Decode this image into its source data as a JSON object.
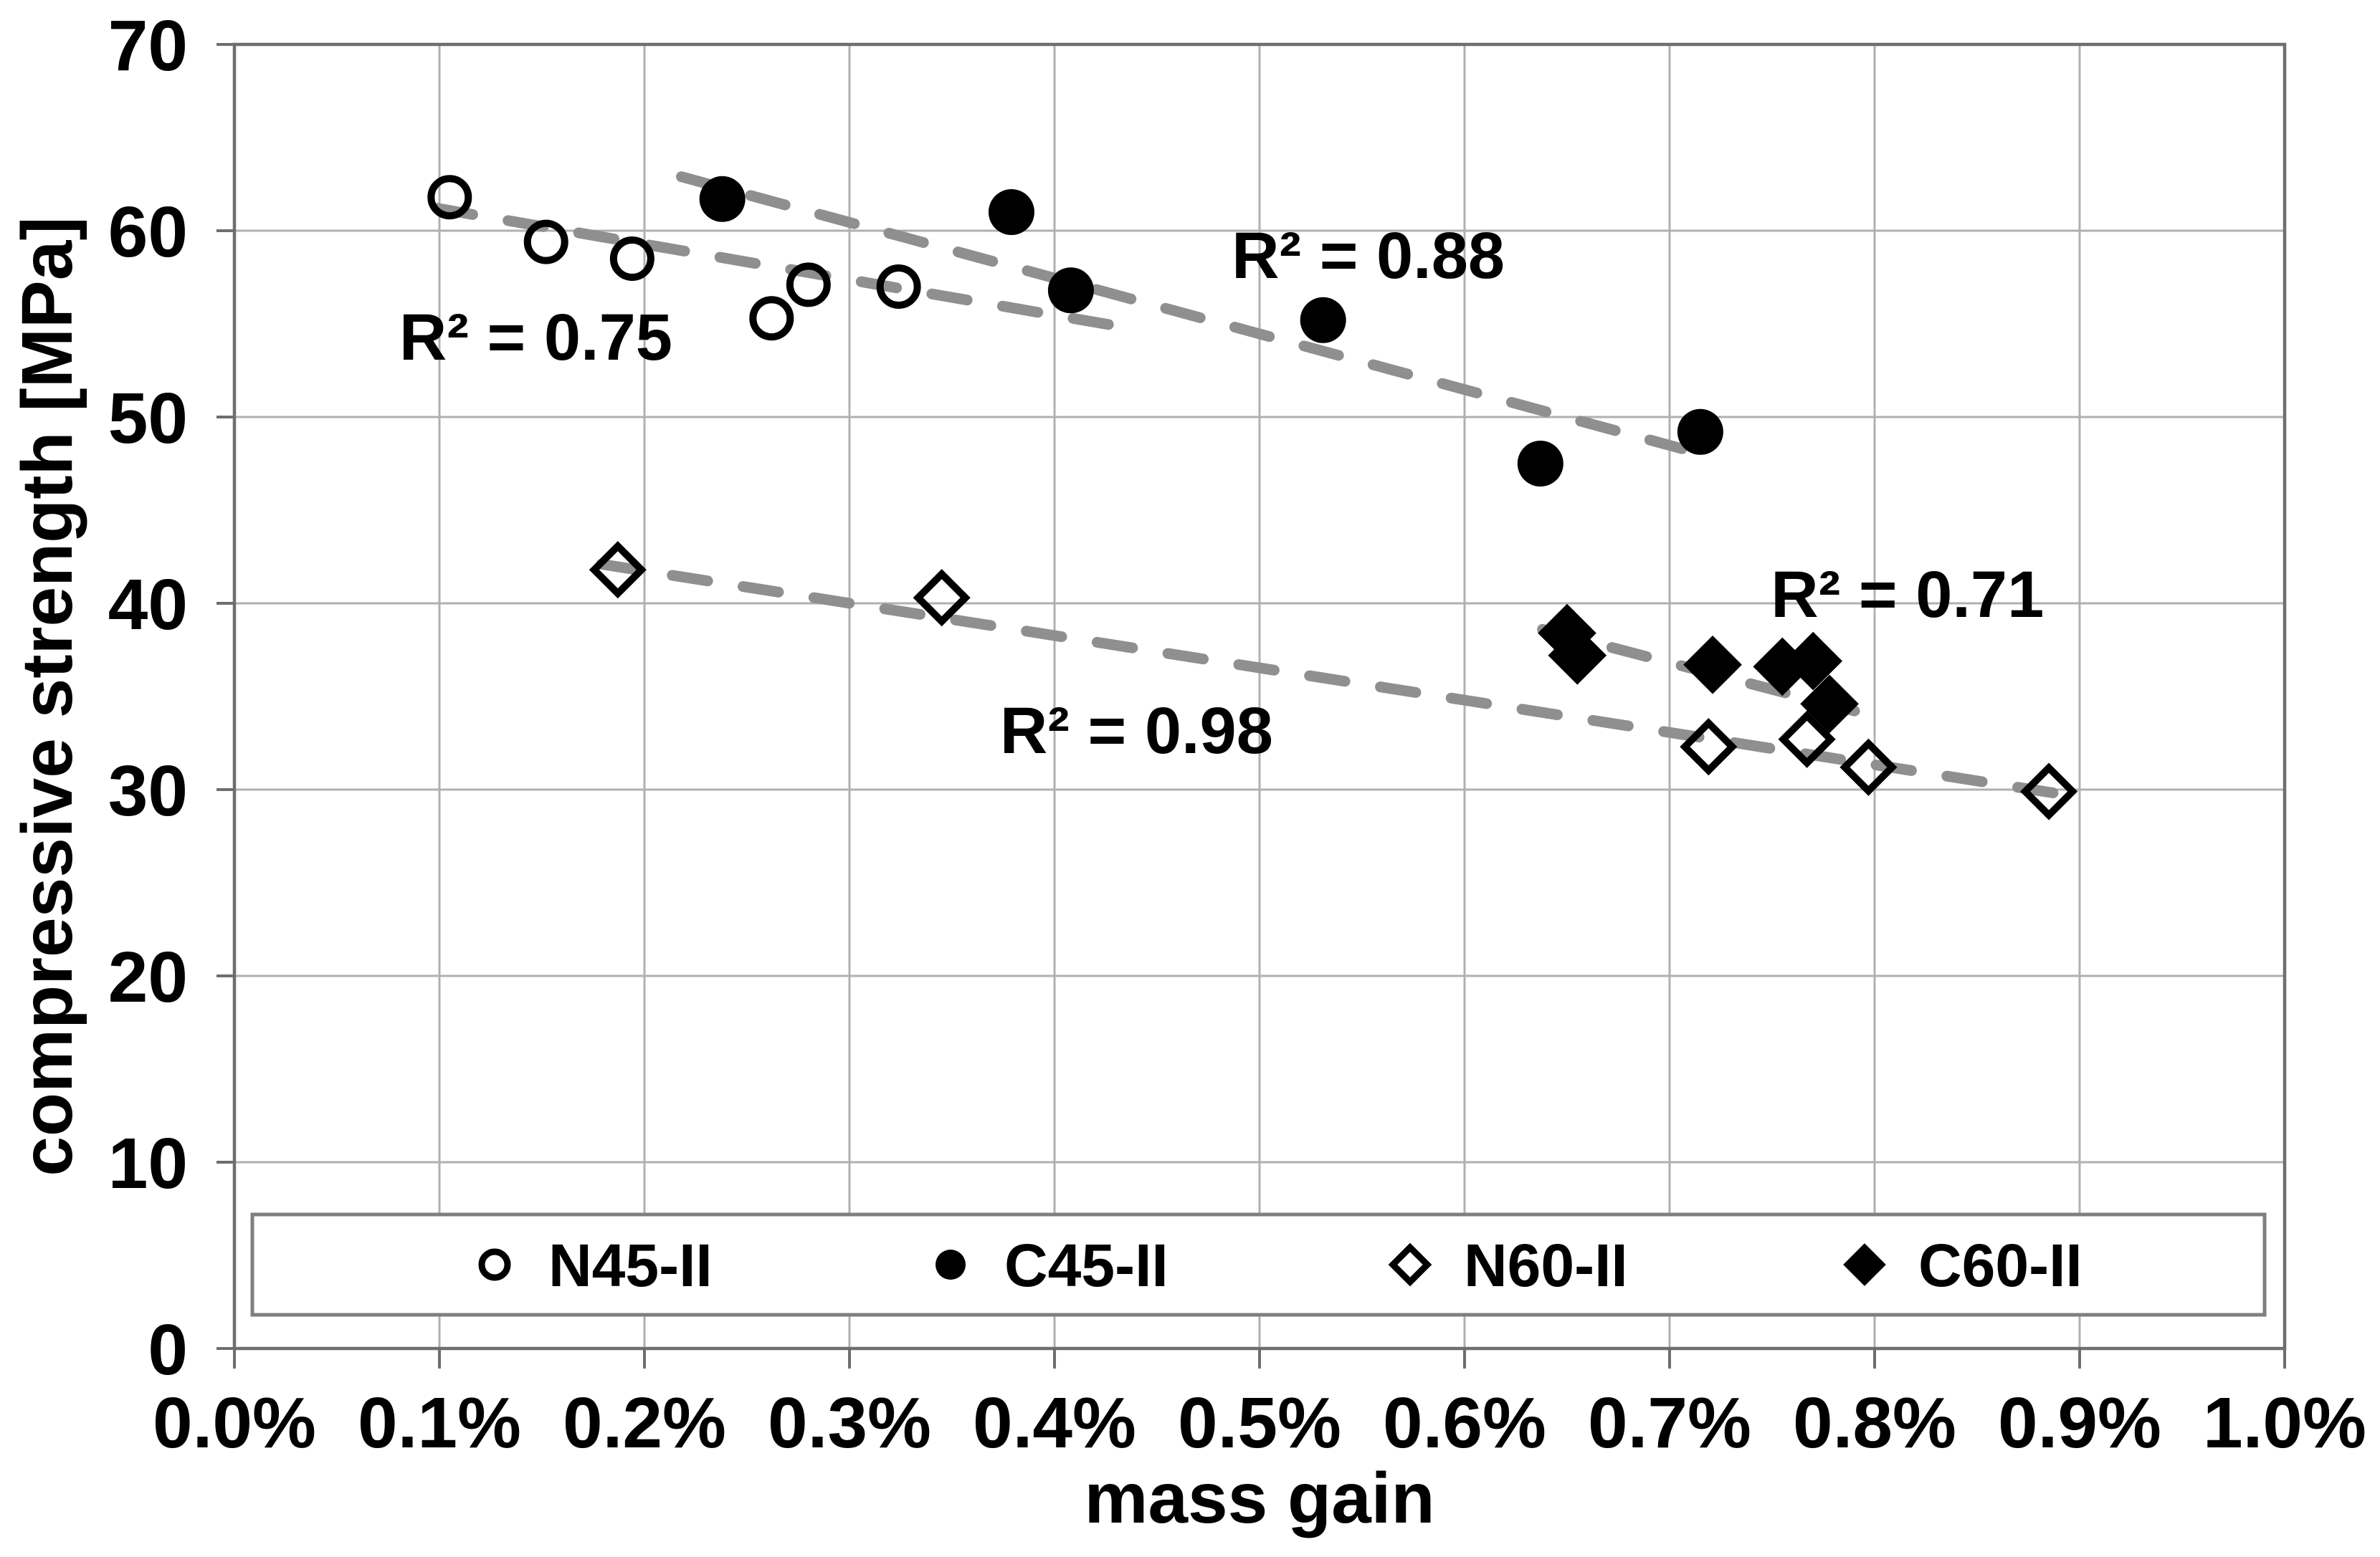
{
  "chart_data": {
    "type": "scatter",
    "title": "",
    "xlabel": "mass gain",
    "ylabel": "compressive strength [MPa]",
    "xlim": [
      0,
      1.0
    ],
    "ylim": [
      0,
      70
    ],
    "grid": true,
    "legend_position": "bottom-inside",
    "x_ticks": [
      {
        "value": 0.0,
        "label": "0.0%"
      },
      {
        "value": 0.1,
        "label": "0.1%"
      },
      {
        "value": 0.2,
        "label": "0.2%"
      },
      {
        "value": 0.3,
        "label": "0.3%"
      },
      {
        "value": 0.4,
        "label": "0.4%"
      },
      {
        "value": 0.5,
        "label": "0.5%"
      },
      {
        "value": 0.6,
        "label": "0.6%"
      },
      {
        "value": 0.7,
        "label": "0.7%"
      },
      {
        "value": 0.8,
        "label": "0.8%"
      },
      {
        "value": 0.9,
        "label": "0.9%"
      },
      {
        "value": 1.0,
        "label": "1.0%"
      }
    ],
    "y_ticks": [
      {
        "value": 0,
        "label": "0"
      },
      {
        "value": 10,
        "label": "10"
      },
      {
        "value": 20,
        "label": "20"
      },
      {
        "value": 30,
        "label": "30"
      },
      {
        "value": 40,
        "label": "40"
      },
      {
        "value": 50,
        "label": "50"
      },
      {
        "value": 60,
        "label": "60"
      },
      {
        "value": 70,
        "label": "70"
      }
    ],
    "series": [
      {
        "name": "N45-II",
        "marker": "circle-open",
        "points": [
          [
            0.105,
            61.8
          ],
          [
            0.152,
            59.4
          ],
          [
            0.194,
            58.5
          ],
          [
            0.262,
            55.3
          ],
          [
            0.28,
            57.1
          ],
          [
            0.324,
            57.0
          ]
        ]
      },
      {
        "name": "C45-II",
        "marker": "circle-filled",
        "points": [
          [
            0.238,
            61.7
          ],
          [
            0.379,
            61.0
          ],
          [
            0.408,
            56.8
          ],
          [
            0.531,
            55.2
          ],
          [
            0.637,
            47.5
          ],
          [
            0.715,
            49.2
          ]
        ]
      },
      {
        "name": "N60-II",
        "marker": "diamond-open",
        "points": [
          [
            0.187,
            41.8
          ],
          [
            0.345,
            40.3
          ],
          [
            0.719,
            32.3
          ],
          [
            0.767,
            32.7
          ],
          [
            0.797,
            31.2
          ],
          [
            0.885,
            29.9
          ]
        ]
      },
      {
        "name": "C60-II",
        "marker": "diamond-filled",
        "points": [
          [
            0.65,
            38.4
          ],
          [
            0.655,
            37.2
          ],
          [
            0.721,
            36.7
          ],
          [
            0.755,
            36.6
          ],
          [
            0.77,
            36.9
          ],
          [
            0.778,
            34.6
          ]
        ]
      }
    ],
    "trendlines": [
      {
        "series": "N45-II",
        "from": [
          0.099,
          61.2
        ],
        "to": [
          0.435,
          54.8
        ],
        "r2_label": "R² = 0.75",
        "label_pos": [
          0.147,
          54.3
        ]
      },
      {
        "series": "C45-II",
        "from": [
          0.218,
          62.9
        ],
        "to": [
          0.706,
          48.3
        ],
        "r2_label": "R² = 0.88",
        "label_pos": [
          0.553,
          58.7
        ]
      },
      {
        "series": "N60-II",
        "from": [
          0.179,
          42.1
        ],
        "to": [
          0.9,
          29.6
        ],
        "r2_label": "R² = 0.98",
        "label_pos": [
          0.44,
          33.2
        ]
      },
      {
        "series": "C60-II",
        "from": [
          0.638,
          38.6
        ],
        "to": [
          0.798,
          34.0
        ],
        "r2_label": "R² = 0.71",
        "label_pos": [
          0.816,
          40.5
        ]
      }
    ],
    "colors": {
      "marker": "#000000",
      "trendline": "#8f8f8f",
      "grid": "#b0b0b0",
      "frame": "#6e6e6e",
      "text": "#000000",
      "background": "#ffffff",
      "legend_border": "#7f7f7f"
    }
  }
}
